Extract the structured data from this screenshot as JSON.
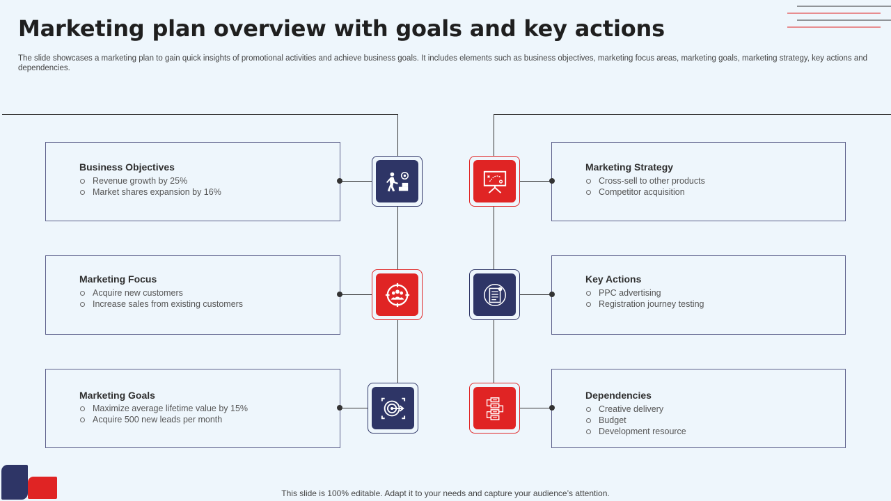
{
  "slide": {
    "title": "Marketing plan overview with goals and key actions",
    "subtitle": "The slide showcases a marketing plan to gain quick insights of promotional activities and achieve business goals. It includes elements such as business objectives, marketing focus areas, marketing goals, marketing strategy, key actions and dependencies.",
    "footer": "This slide is 100% editable. Adapt it to your needs and capture your audience’s attention."
  },
  "colors": {
    "navy": "#2e3566",
    "red": "#e02424",
    "background": "#eef6fc"
  },
  "left_cards": [
    {
      "title": "Business Objectives",
      "items": [
        "Revenue  growth by 25%",
        "Market shares expansion by 16%"
      ],
      "icon": "goal-achievement-icon"
    },
    {
      "title": "Marketing Focus",
      "items": [
        "Acquire new customers",
        "Increase sales from existing customers"
      ],
      "icon": "target-audience-icon"
    },
    {
      "title": "Marketing Goals",
      "items": [
        "Maximize average  lifetime value  by 15%",
        "Acquire 500 new leads per month"
      ],
      "icon": "target-arrow-icon"
    }
  ],
  "right_cards": [
    {
      "title": "Marketing Strategy",
      "items": [
        "Cross-sell to other products",
        "Competitor acquisition"
      ],
      "icon": "strategy-board-icon"
    },
    {
      "title": "Key Actions",
      "items": [
        "PPC advertising",
        "Registration journey  testing"
      ],
      "icon": "checklist-icon"
    },
    {
      "title": "Dependencies",
      "items": [
        "Creative  delivery",
        "Budget",
        "Development  resource"
      ],
      "icon": "workflow-icon"
    }
  ]
}
